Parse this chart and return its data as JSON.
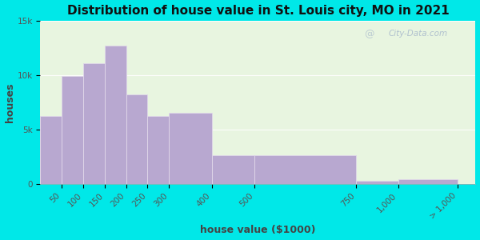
{
  "title": "Distribution of house value in St. Louis city, MO in 2021",
  "xlabel": "house value ($1000)",
  "ylabel": "houses",
  "bin_edges": [
    0,
    50,
    100,
    150,
    200,
    250,
    300,
    400,
    500,
    750,
    1000,
    1500
  ],
  "bin_labels": [
    "50",
    "100",
    "150",
    "200",
    "250",
    "300",
    "400",
    "500",
    "750",
    "1,000",
    "> 1,000"
  ],
  "values": [
    6200,
    9900,
    11100,
    12700,
    8200,
    6200,
    6500,
    2600,
    2600,
    300,
    400
  ],
  "bar_color": "#b8a8d0",
  "bar_edge_color": "#e0d8ea",
  "background_outer": "#00e8e8",
  "background_inner_top": "#e8f5e0",
  "background_inner_bottom": "#d0eef0",
  "title_fontsize": 11,
  "label_fontsize": 9,
  "tick_fontsize": 7.5,
  "ylim": [
    0,
    15000
  ],
  "yticks": [
    0,
    5000,
    10000,
    15000
  ],
  "ytick_labels": [
    "0",
    "5k",
    "10k",
    "15k"
  ],
  "watermark": "City-Data.com"
}
